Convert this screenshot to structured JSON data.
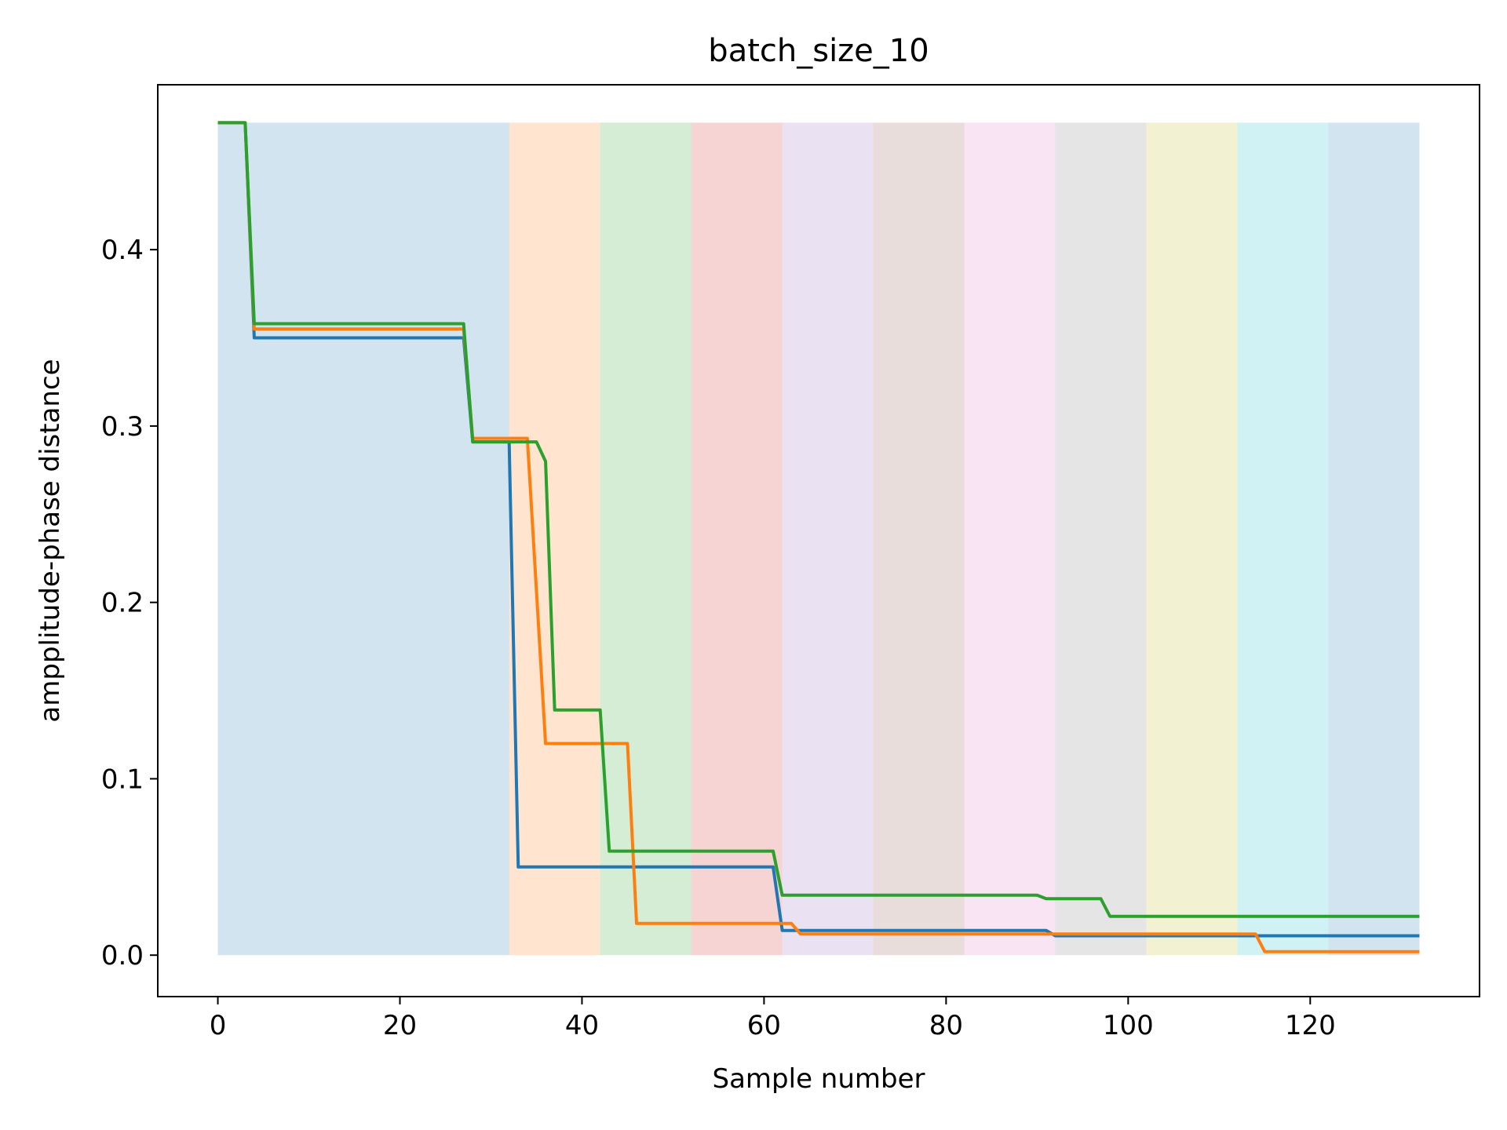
{
  "chart_data": {
    "type": "line",
    "title": "batch_size_10",
    "xlabel": "Sample number",
    "ylabel": "ampplitude-phase distance",
    "xlim": [
      -6.6,
      138.6
    ],
    "ylim": [
      -0.0235,
      0.4935
    ],
    "x_ticks": [
      0,
      20,
      40,
      60,
      80,
      100,
      120
    ],
    "y_ticks": [
      0.0,
      0.1,
      0.2,
      0.3,
      0.4
    ],
    "x_tick_labels": [
      "0",
      "20",
      "40",
      "60",
      "80",
      "100",
      "120"
    ],
    "y_tick_labels": [
      "0.0",
      "0.1",
      "0.2",
      "0.3",
      "0.4"
    ],
    "grid": false,
    "legend": false,
    "shaded_regions": [
      {
        "x0": 0,
        "x1": 32,
        "y0": 0.0,
        "y1": 0.472,
        "color": "#1f77b4"
      },
      {
        "x0": 32,
        "x1": 42,
        "y0": 0.0,
        "y1": 0.472,
        "color": "#ff7f0e"
      },
      {
        "x0": 42,
        "x1": 52,
        "y0": 0.0,
        "y1": 0.472,
        "color": "#2ca02c"
      },
      {
        "x0": 52,
        "x1": 62,
        "y0": 0.0,
        "y1": 0.472,
        "color": "#d62728"
      },
      {
        "x0": 62,
        "x1": 72,
        "y0": 0.0,
        "y1": 0.472,
        "color": "#9467bd"
      },
      {
        "x0": 72,
        "x1": 82,
        "y0": 0.0,
        "y1": 0.472,
        "color": "#8c564b"
      },
      {
        "x0": 82,
        "x1": 92,
        "y0": 0.0,
        "y1": 0.472,
        "color": "#e377c2"
      },
      {
        "x0": 92,
        "x1": 102,
        "y0": 0.0,
        "y1": 0.472,
        "color": "#7f7f7f"
      },
      {
        "x0": 102,
        "x1": 112,
        "y0": 0.0,
        "y1": 0.472,
        "color": "#bcbd22"
      },
      {
        "x0": 112,
        "x1": 122,
        "y0": 0.0,
        "y1": 0.472,
        "color": "#17becf"
      },
      {
        "x0": 122,
        "x1": 132,
        "y0": 0.0,
        "y1": 0.472,
        "color": "#1f77b4"
      }
    ],
    "shade_opacity": 0.2,
    "series": [
      {
        "color": "#1f77b4",
        "x": [
          0,
          3,
          4,
          27,
          28,
          32,
          33,
          61,
          62,
          91,
          92,
          132
        ],
        "y": [
          0.472,
          0.472,
          0.35,
          0.35,
          0.291,
          0.291,
          0.05,
          0.05,
          0.014,
          0.014,
          0.011,
          0.011
        ]
      },
      {
        "color": "#ff7f0e",
        "x": [
          0,
          3,
          4,
          27,
          28,
          34,
          36,
          45,
          46,
          62,
          63,
          64,
          114,
          115,
          132
        ],
        "y": [
          0.472,
          0.472,
          0.355,
          0.355,
          0.293,
          0.293,
          0.12,
          0.12,
          0.018,
          0.018,
          0.018,
          0.012,
          0.012,
          0.002,
          0.002
        ]
      },
      {
        "color": "#2ca02c",
        "x": [
          0,
          3,
          4,
          27,
          28,
          35,
          36,
          37,
          42,
          43,
          61,
          62,
          90,
          91,
          97,
          98,
          132
        ],
        "y": [
          0.472,
          0.472,
          0.358,
          0.358,
          0.291,
          0.291,
          0.28,
          0.139,
          0.139,
          0.059,
          0.059,
          0.034,
          0.034,
          0.032,
          0.032,
          0.022,
          0.022
        ]
      }
    ]
  }
}
